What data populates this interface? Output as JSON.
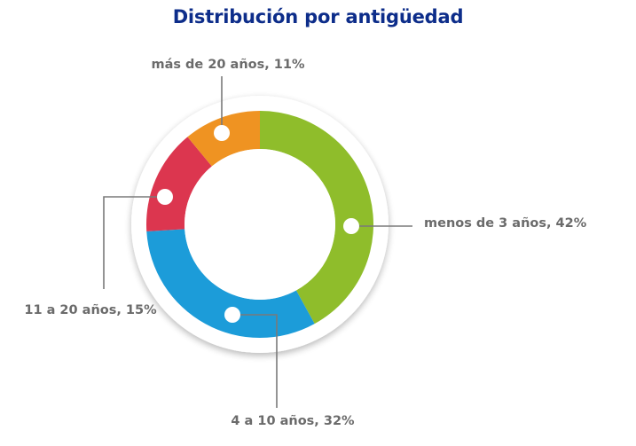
{
  "chart_data": {
    "type": "pie",
    "title": "Distribución por antigüedad",
    "donut": true,
    "slices": [
      {
        "label": "menos de 3 años, 42%",
        "category": "menos de 3 años",
        "value": 42,
        "color": "#8fbd2b"
      },
      {
        "label": "4 a 10 años, 32%",
        "category": "4 a 10 años",
        "value": 32,
        "color": "#1c9cd9"
      },
      {
        "label": "11 a 20 años, 15%",
        "category": "11 a 20 años",
        "value": 15,
        "color": "#dc364f"
      },
      {
        "label": "más de 20 años, 11%",
        "category": "más de 20 años",
        "value": 11,
        "color": "#ef9322"
      }
    ],
    "colors": {
      "title": "#0d2d8a",
      "label_text": "#6b6b6b",
      "leader_line": "#7a7a7a"
    }
  }
}
